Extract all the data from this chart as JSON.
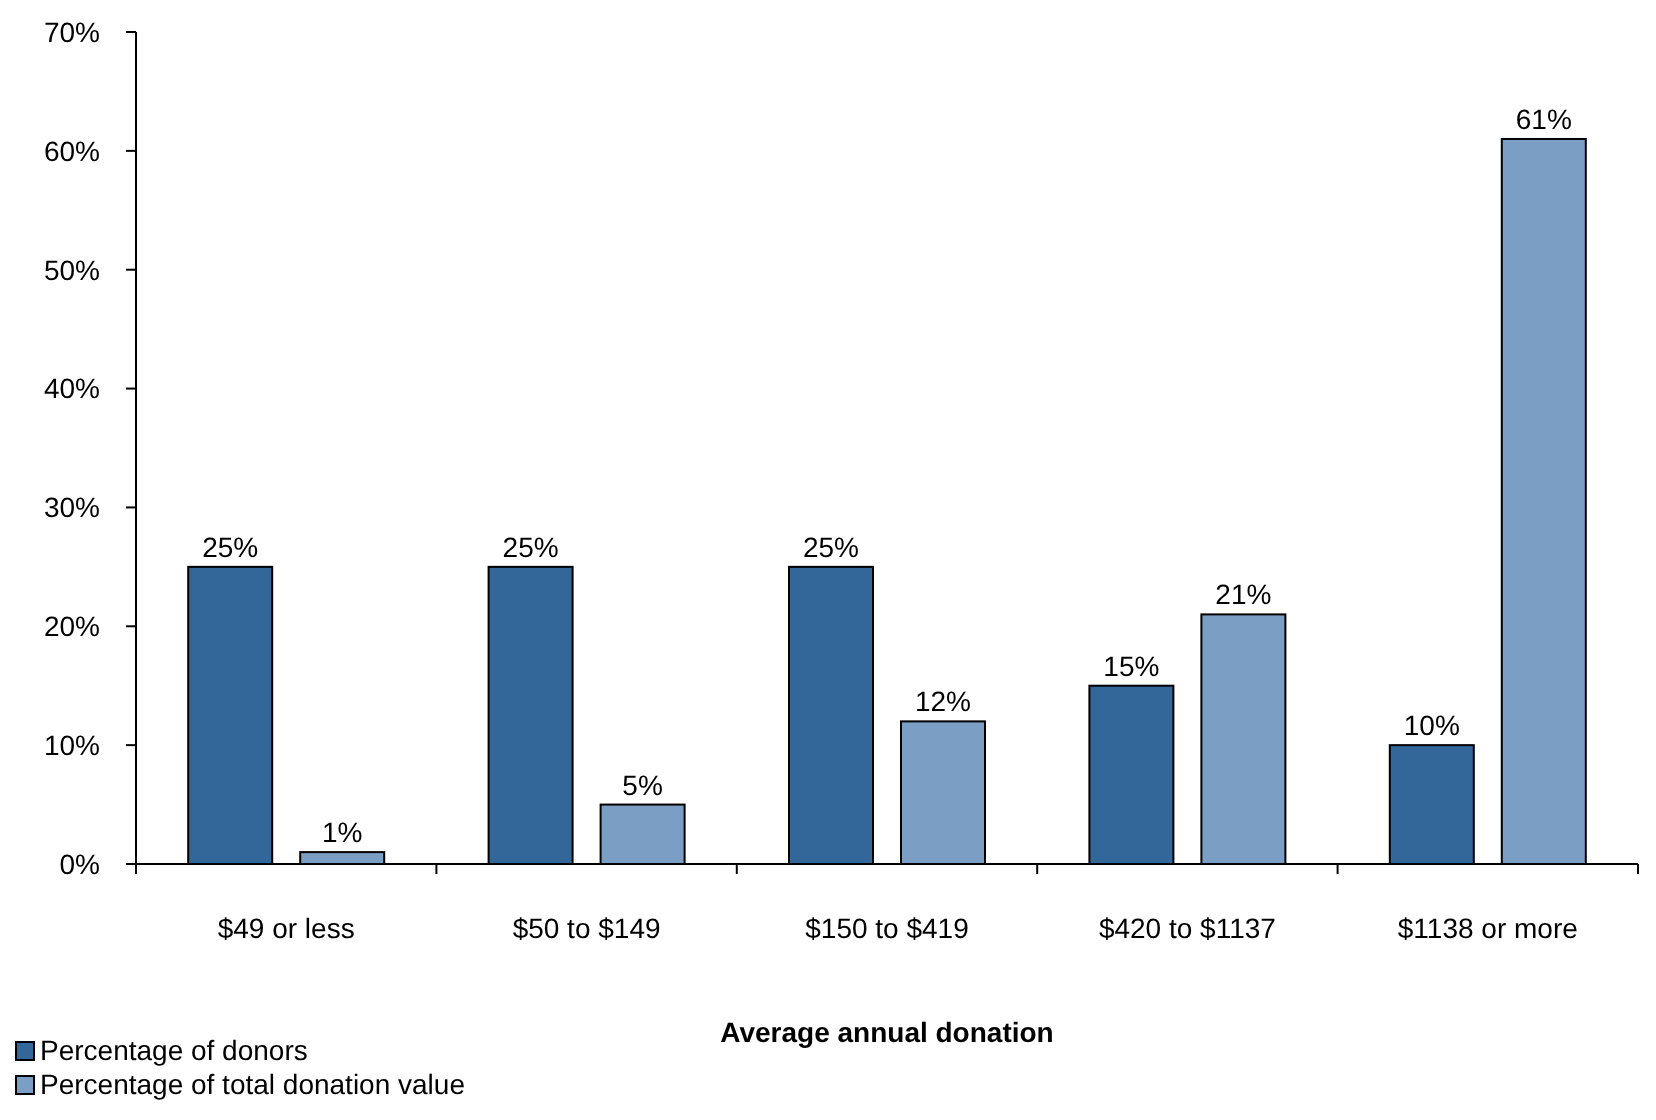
{
  "chart_data": {
    "type": "bar",
    "xlabel": "Average annual donation",
    "categories": [
      "$49 or less",
      "$50 to $149",
      "$150 to $419",
      "$420 to $1137",
      "$1138 or more"
    ],
    "series": [
      {
        "name": "Percentage of donors",
        "color": "#336699",
        "values": [
          25,
          25,
          25,
          15,
          10
        ],
        "value_labels": [
          "25%",
          "25%",
          "25%",
          "15%",
          "10%"
        ]
      },
      {
        "name": "Percentage of total donation value",
        "color": "#7b9fc4",
        "values": [
          1,
          5,
          12,
          21,
          61
        ],
        "value_labels": [
          "1%",
          "5%",
          "12%",
          "21%",
          "61%"
        ]
      }
    ],
    "ylim": [
      0,
      70
    ],
    "yticks": [
      {
        "value": 0,
        "label": "0%"
      },
      {
        "value": 10,
        "label": "10%"
      },
      {
        "value": 20,
        "label": "20%"
      },
      {
        "value": 30,
        "label": "30%"
      },
      {
        "value": 40,
        "label": "40%"
      },
      {
        "value": 50,
        "label": "50%"
      },
      {
        "value": 60,
        "label": "60%"
      },
      {
        "value": 70,
        "label": "70%"
      }
    ],
    "grid": false,
    "legend": "bottom left"
  }
}
